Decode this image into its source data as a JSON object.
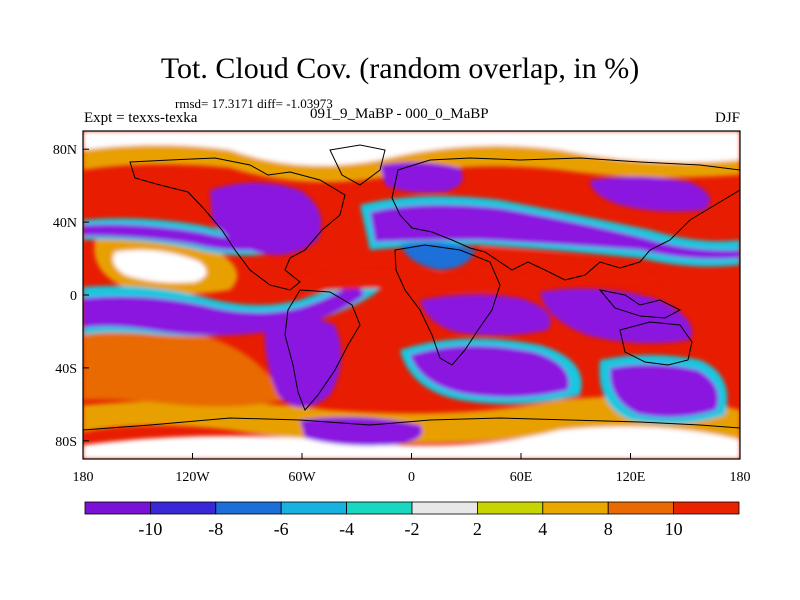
{
  "title": "Tot. Cloud Cov. (random overlap, in %)",
  "stats": "rmsd= 17.3171 diff= -1.03973",
  "expt": "Expt = texxs-texka",
  "period": "091_9_MaBP - 000_0_MaBP",
  "season": "DJF",
  "x_ticks": [
    {
      "label": "180",
      "lon": -180
    },
    {
      "label": "120W",
      "lon": -120
    },
    {
      "label": "60W",
      "lon": -60
    },
    {
      "label": "0",
      "lon": 0
    },
    {
      "label": "60E",
      "lon": 60
    },
    {
      "label": "120E",
      "lon": 120
    },
    {
      "label": "180",
      "lon": 180
    }
  ],
  "y_ticks": [
    {
      "label": "80N",
      "lat": 80
    },
    {
      "label": "40N",
      "lat": 40
    },
    {
      "label": "0",
      "lat": 0
    },
    {
      "label": "40S",
      "lat": -40
    },
    {
      "label": "80S",
      "lat": -80
    }
  ],
  "colorbar": {
    "colors": [
      "#7a12d6",
      "#3a28d8",
      "#1c6fd8",
      "#18b2e0",
      "#18d8c2",
      "#e8e8e8",
      "#c8d400",
      "#e8a800",
      "#e86a00",
      "#e82400"
    ],
    "labels": [
      "-10",
      "-8",
      "-6",
      "-4",
      "-2",
      "2",
      "4",
      "8",
      "10"
    ]
  },
  "map_colors": {
    "low": "#8a18e0",
    "blue": "#1c6fd8",
    "cyan": "#18c8e0",
    "neutral": "#ffffff",
    "yellow": "#c8d400",
    "orange": "#e8a000",
    "darkorange": "#e86a00",
    "high": "#e81c00",
    "coast": "#000000"
  }
}
